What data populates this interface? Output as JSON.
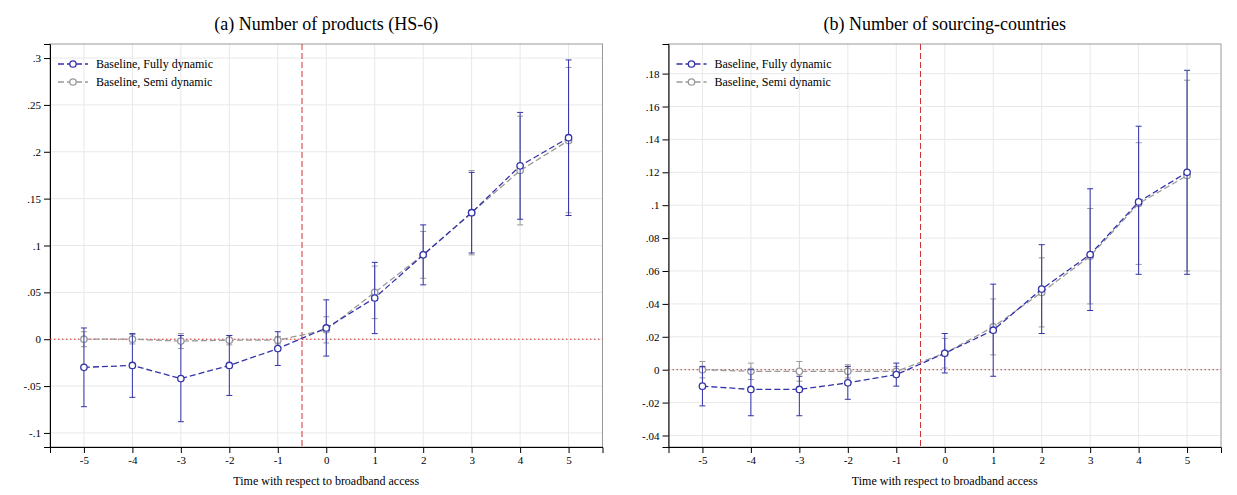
{
  "chart_data": [
    {
      "type": "line",
      "title": "(a) Number of products (HS-6)",
      "x_label": "Time with respect to broadband access",
      "x": [
        -5,
        -4,
        -3,
        -2,
        -1,
        0,
        1,
        2,
        3,
        4,
        5
      ],
      "xlim": [
        -5.7,
        5.7
      ],
      "ylim": [
        -0.115,
        0.315
      ],
      "xticks": [
        -5,
        -4,
        -3,
        -2,
        -1,
        0,
        1,
        2,
        3,
        4,
        5
      ],
      "yticks": [
        {
          "value": -0.1,
          "label": "-.1"
        },
        {
          "value": -0.05,
          "label": "-.05"
        },
        0,
        {
          "value": 0.05,
          "label": ".05"
        },
        {
          "value": 0.1,
          "label": ".1"
        },
        {
          "value": 0.15,
          "label": ".15"
        },
        {
          "value": 0.2,
          "label": ".2"
        },
        {
          "value": 0.25,
          "label": ".25"
        },
        {
          "value": 0.3,
          "label": ".3"
        }
      ],
      "grid": true,
      "legend": "upper left",
      "reference_lines": [
        {
          "axis": "y",
          "value": 0,
          "color": "#cc3333",
          "line_style": "dotted"
        },
        {
          "axis": "x",
          "value": -0.5,
          "color": "#cc3333",
          "line_style": "dashed"
        }
      ],
      "series": [
        {
          "name": "Baseline, Fully dynamic",
          "color": "#3333aa",
          "marker": "circle",
          "line_style": "dashed",
          "values": [
            -0.03,
            -0.028,
            -0.042,
            -0.028,
            -0.01,
            0.012,
            0.044,
            0.09,
            0.135,
            0.185,
            0.215
          ],
          "y_lo": [
            -0.072,
            -0.062,
            -0.088,
            -0.06,
            -0.028,
            -0.018,
            0.006,
            0.058,
            0.092,
            0.128,
            0.132
          ],
          "y_hi": [
            0.012,
            0.006,
            0.004,
            0.004,
            0.008,
            0.042,
            0.082,
            0.122,
            0.178,
            0.242,
            0.298
          ]
        },
        {
          "name": "Baseline, Semi dynamic",
          "color": "#999999",
          "marker": "circle",
          "line_style": "dashed",
          "values": [
            0.0,
            0.0,
            -0.002,
            -0.001,
            -0.001,
            0.01,
            0.05,
            0.09,
            0.135,
            0.18,
            0.212
          ],
          "y_lo": [
            -0.008,
            -0.005,
            -0.01,
            -0.006,
            -0.005,
            -0.004,
            0.022,
            0.065,
            0.09,
            0.122,
            0.135
          ],
          "y_hi": [
            0.008,
            0.005,
            0.006,
            0.004,
            0.003,
            0.024,
            0.078,
            0.115,
            0.18,
            0.238,
            0.29
          ]
        }
      ]
    },
    {
      "type": "line",
      "title": "(b) Number of sourcing-countries",
      "x_label": "Time with respect to broadband access",
      "x": [
        -5,
        -4,
        -3,
        -2,
        -1,
        0,
        1,
        2,
        3,
        4,
        5
      ],
      "xlim": [
        -5.7,
        5.7
      ],
      "ylim": [
        -0.047,
        0.198
      ],
      "xticks": [
        -5,
        -4,
        -3,
        -2,
        -1,
        0,
        1,
        2,
        3,
        4,
        5
      ],
      "yticks": [
        {
          "value": -0.04,
          "label": "-.04"
        },
        {
          "value": -0.02,
          "label": "-.02"
        },
        0,
        {
          "value": 0.02,
          "label": ".02"
        },
        {
          "value": 0.04,
          "label": ".04"
        },
        {
          "value": 0.06,
          "label": ".06"
        },
        {
          "value": 0.08,
          "label": ".08"
        },
        {
          "value": 0.1,
          "label": ".1"
        },
        {
          "value": 0.12,
          "label": ".12"
        },
        {
          "value": 0.14,
          "label": ".14"
        },
        {
          "value": 0.16,
          "label": ".16"
        },
        {
          "value": 0.18,
          "label": ".18"
        }
      ],
      "grid": true,
      "legend": "upper left",
      "reference_lines": [
        {
          "axis": "y",
          "value": 0,
          "color": "#cc3333",
          "line_style": "dotted"
        },
        {
          "axis": "x",
          "value": -0.5,
          "color": "#cc3333",
          "line_style": "dashed"
        }
      ],
      "series": [
        {
          "name": "Baseline, Fully dynamic",
          "color": "#3333aa",
          "marker": "circle",
          "line_style": "dashed",
          "values": [
            -0.01,
            -0.012,
            -0.012,
            -0.008,
            -0.003,
            0.01,
            0.024,
            0.049,
            0.07,
            0.102,
            0.12
          ],
          "y_lo": [
            -0.022,
            -0.028,
            -0.028,
            -0.018,
            -0.01,
            -0.002,
            -0.004,
            0.022,
            0.036,
            0.058,
            0.058
          ],
          "y_hi": [
            0.002,
            -0.0,
            -0.004,
            0.002,
            0.004,
            0.022,
            0.052,
            0.076,
            0.11,
            0.148,
            0.182
          ]
        },
        {
          "name": "Baseline, Semi dynamic",
          "color": "#999999",
          "marker": "circle",
          "line_style": "dashed",
          "values": [
            0.0,
            -0.001,
            -0.001,
            -0.001,
            -0.001,
            0.01,
            0.026,
            0.047,
            0.069,
            0.101,
            0.118
          ],
          "y_lo": [
            -0.005,
            -0.006,
            -0.007,
            -0.005,
            -0.004,
            0.001,
            0.009,
            0.026,
            0.04,
            0.064,
            0.06
          ],
          "y_hi": [
            0.005,
            0.004,
            0.005,
            0.003,
            0.002,
            0.019,
            0.043,
            0.068,
            0.098,
            0.138,
            0.176
          ]
        }
      ]
    }
  ]
}
